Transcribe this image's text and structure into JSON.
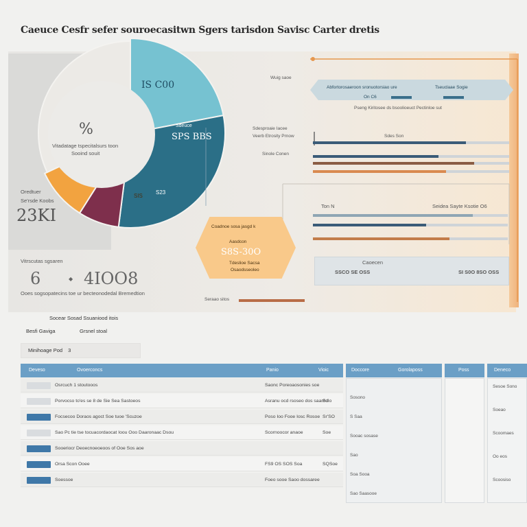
{
  "title": "Caeuce Cesfr sefer souroecasitwn Sgers tarisdon Savisc Carter dretis",
  "chart_data": [
    {
      "type": "pie",
      "slices": [
        {
          "label": "IS C00",
          "value": 22,
          "color": "#76c2d1"
        },
        {
          "label": "Sdeuce SPS BBS",
          "value": 30,
          "color": "#2b6f87"
        },
        {
          "label": "S23",
          "value": 7,
          "color": "#7e2f4c"
        },
        {
          "label": "SIS",
          "value": 9,
          "color": "#f2a340"
        },
        {
          "label": "",
          "value": 32,
          "color": "#eceae6"
        }
      ],
      "center_symbol": "%",
      "center_line1": "Vitadatage tspecitalsurs toon",
      "center_line2": "Sooind souit"
    },
    {
      "type": "bar",
      "orientation": "horizontal",
      "labels": [
        "Sdesproaie Iacee",
        "Veerb Etrosity Prnow",
        "Sinole Conen"
      ],
      "series_colors": [
        "#3a5b78",
        "#e89a55",
        "#8ea8b7"
      ],
      "rows": [
        {
          "label": "Sdesproaie Iacee",
          "value": 78,
          "color": "#3a5b78"
        },
        {
          "label": "Veerb Etrosity Prnow",
          "value": 64,
          "color": "#3a5b78"
        },
        {
          "label": "Sinole Conen",
          "value": 82,
          "color": "#8a5c44"
        },
        {
          "label": "",
          "value": 68,
          "color": "#d98a50"
        }
      ],
      "xlim": [
        0,
        100
      ]
    },
    {
      "type": "bar",
      "orientation": "horizontal",
      "rows": [
        {
          "label": "T on N",
          "value": 82,
          "color": "#8fa6b4"
        },
        {
          "label": "",
          "value": 58,
          "color": "#3a5b78"
        },
        {
          "label": "",
          "value": 70,
          "color": "#c27c4a"
        }
      ],
      "xlim": [
        0,
        100
      ]
    }
  ],
  "pie_callouts": {
    "left_label1": "Oredtuer",
    "left_label2": "Se'rsde Koobs",
    "left_value": "23KI",
    "bottom_label": "Vitrscutas sgsaren",
    "bottom_value_a": "6",
    "bottom_sep": "◆",
    "bottom_value_b": "4IOO8",
    "bottom_caption": "Ooes sogsopatecins toe ur becteonodedal Bremedtion",
    "bottom_bar_label": "Seraao sitos"
  },
  "right_panel": {
    "header_label": "Wuig saoe",
    "pill_text": "Abfortorosaeroon sronuotorsiao ure",
    "pill_text2": "Tseuclaae Sogie",
    "pill_sub": "On C6",
    "pill_under": "Pseng Kiritosee ds bsoolioeuct Pectinloe sut",
    "second_tag": "Sdes Son",
    "mid_label_left": "Ton N",
    "mid_label_right": "Seidea Sayte Ksotie O6"
  },
  "hexagon": {
    "line1": "Coadnoe sosa jasgd k",
    "line2": "Aasdcon",
    "value": "S8S-30O",
    "line3": "Tdeslioe Sacsa",
    "line4": "Osaodsseoleo"
  },
  "legend": {
    "title": "Caoecen",
    "left": "SSCO SE OSS",
    "right": "SI S0O 8SO OSS"
  },
  "filters": {
    "line1": "Socear Sosad Ssuaniood itois",
    "line2_label": "Besfi Gaviga",
    "line2_value": "Grsnel stoal",
    "box_label": "Minihoage Pod",
    "box_value": "3"
  },
  "table": {
    "headers": [
      "Deveso",
      "Ovoerconcs",
      "Panio",
      "Vioic",
      "Doccore",
      "Gorolaposs",
      "Poss",
      "Deneco"
    ],
    "rows": [
      {
        "tag_color": "#d9dcdf",
        "c1": "Osrcuch 1 stoutooos",
        "c2": "Saonc Poreoaosonies soe",
        "c3": ""
      },
      {
        "tag_color": "#d9dcdf",
        "c1": "Porvocso to'es se 8 de Sie Sea Sastoeos",
        "c2": "Asranu ocd rsoseo dos saarod",
        "c3": "Sclo"
      },
      {
        "tag_color": "#3f78a8",
        "c1": "Focsecoo Doraos agoct Soe tuoe 'Scuzoe",
        "c2": "Poso Ioo Fooe Iosc Rosoe",
        "c3": "Sr'SO"
      },
      {
        "tag_color": "#d9dcdf",
        "c1": "Sao Pc tie tse tocuacordaocat Ioou Ooo Daaronaac Dsou",
        "c2": "Scornoocor anaoe",
        "c3": "Soe"
      },
      {
        "tag_color": "#3f78a8",
        "c1": "Sooeriocr Deoecnoeoeoos of Ooe Sos aoe",
        "c2": "",
        "c3": ""
      },
      {
        "tag_color": "#3f78a8",
        "c1": "Orsa   Scon Ooee",
        "c2": "FS9 OS SOS Soa",
        "c3": "SQSoe"
      },
      {
        "tag_color": "#3f78a8",
        "c1": "Soessoe",
        "c2": "Foeo sooe Saoo dossaree",
        "c3": ""
      }
    ],
    "sub_rows": [
      "Sosono",
      "S Saa",
      "Sooac sosase",
      "Sao",
      "Soa Sooa",
      "Sao Saasooe"
    ],
    "side_rows": [
      "Sesoe Sono",
      "Soeao",
      "Scoomaes",
      "Oo eos",
      "Scoosiso"
    ]
  }
}
